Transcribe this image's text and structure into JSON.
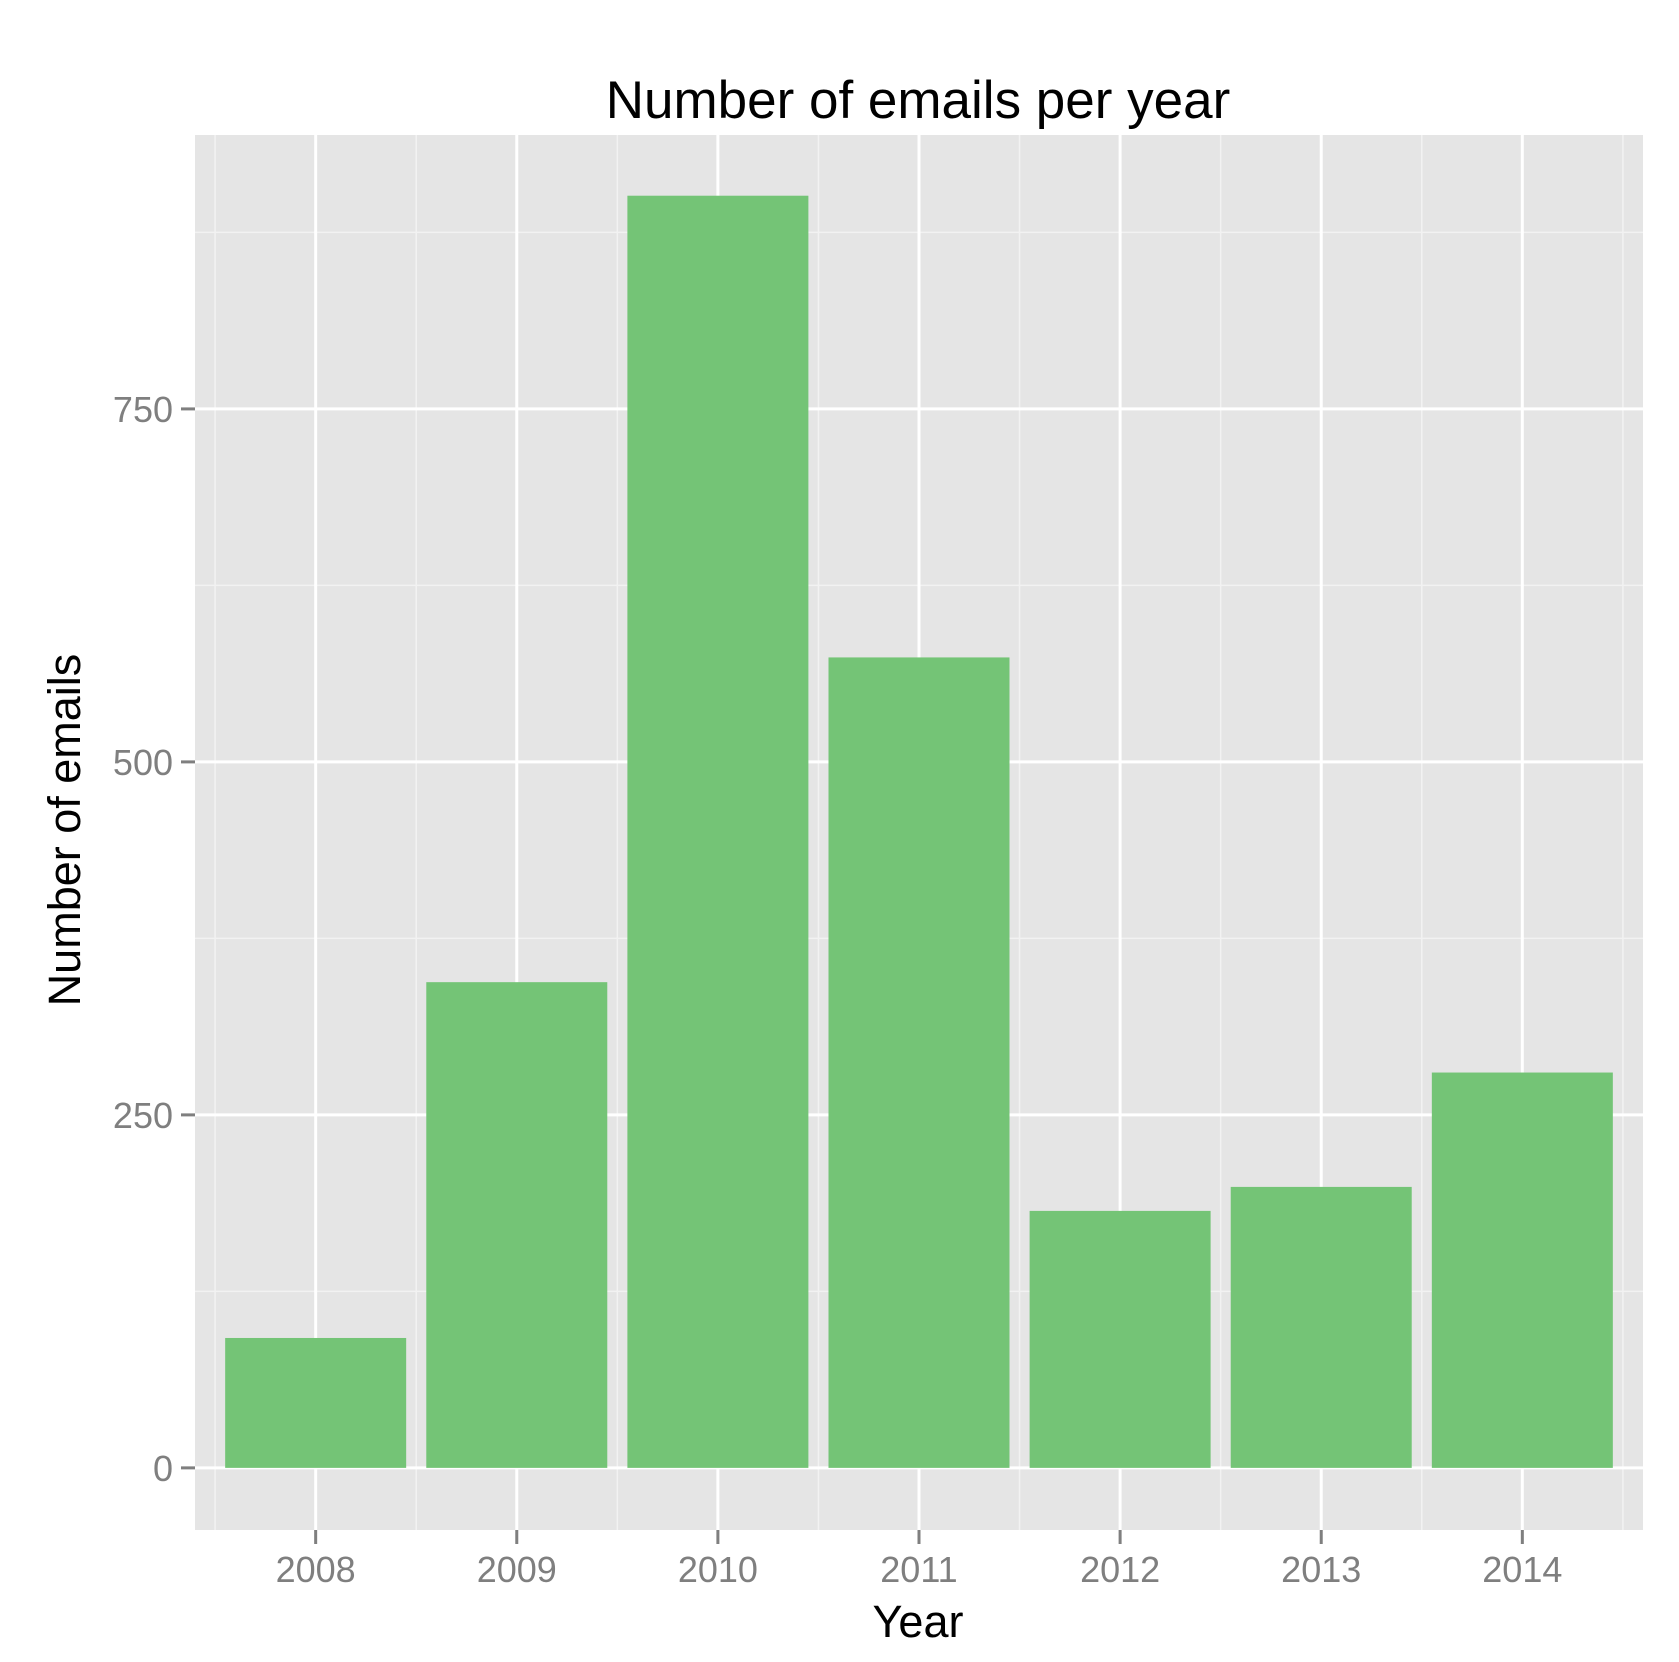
{
  "chart_data": {
    "type": "bar",
    "title": "Number of emails per year",
    "xlabel": "Year",
    "ylabel": "Number of emails",
    "categories": [
      "2008",
      "2009",
      "2010",
      "2011",
      "2012",
      "2013",
      "2014"
    ],
    "values": [
      92,
      344,
      901,
      574,
      182,
      199,
      280
    ],
    "ylim": [
      -44,
      944
    ],
    "yticks": [
      0,
      250,
      500,
      750
    ],
    "ytick_labels": [
      "0",
      "250",
      "500",
      "750"
    ],
    "grid": true,
    "legend": "none",
    "colors": {
      "bar": "#74c476",
      "panel": "#e5e5e5",
      "grid_major": "#ffffff",
      "grid_minor": "#f2f2f2",
      "tick_text": "#7f7f7f",
      "tick_mark": "#7f7f7f",
      "title_text": "#000000"
    }
  }
}
